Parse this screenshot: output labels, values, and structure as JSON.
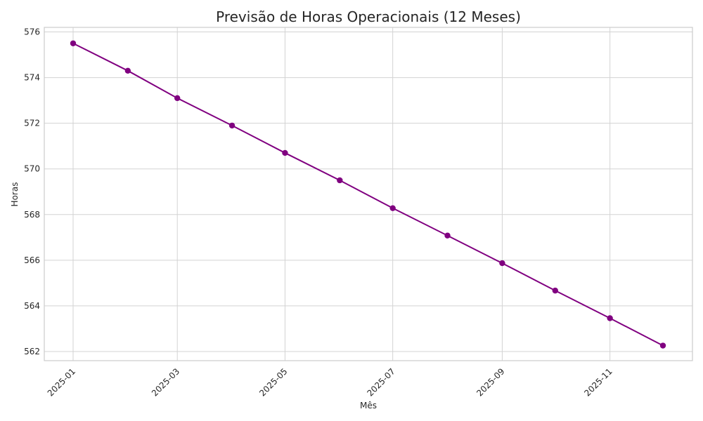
{
  "chart_data": {
    "type": "line",
    "title": "Previsão de Horas Operacionais (12 Meses)",
    "xlabel": "Mês",
    "ylabel": "Horas",
    "x": [
      "2025-01",
      "2025-02",
      "2025-03",
      "2025-04",
      "2025-05",
      "2025-06",
      "2025-07",
      "2025-08",
      "2025-09",
      "2025-10",
      "2025-11",
      "2025-12"
    ],
    "x_tick_labels": [
      "2025-01",
      "2025-03",
      "2025-05",
      "2025-07",
      "2025-09",
      "2025-11"
    ],
    "y_ticks": [
      562,
      564,
      566,
      568,
      570,
      572,
      574,
      576
    ],
    "ylim": [
      561.6,
      576.2
    ],
    "grid": true,
    "series": [
      {
        "color": "#800080",
        "values": [
          575.5,
          574.3,
          573.1,
          571.9,
          570.7,
          569.5,
          568.28,
          567.08,
          565.87,
          564.67,
          563.46,
          562.26
        ]
      }
    ]
  }
}
